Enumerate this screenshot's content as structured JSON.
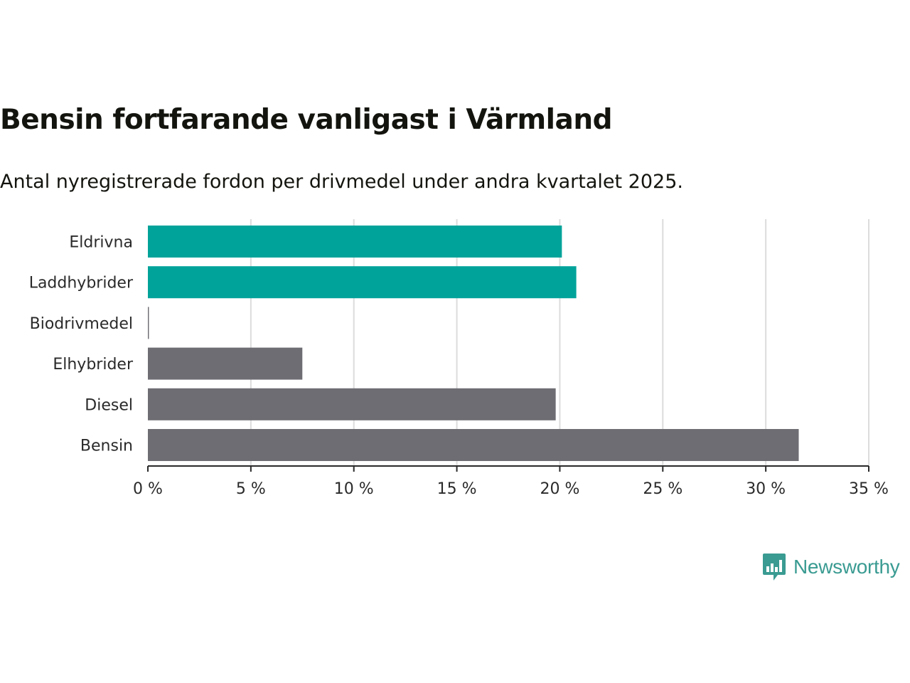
{
  "header": {
    "title": "Bensin fortfarande vanligast i Värmland",
    "subtitle": "Antal nyregistrerade fordon per drivmedel under andra kvartalet 2025."
  },
  "chart_data": {
    "type": "bar",
    "orientation": "horizontal",
    "categories": [
      "Eldrivna",
      "Laddhybrider",
      "Biodrivmedel",
      "Elhybrider",
      "Diesel",
      "Bensin"
    ],
    "values": [
      20.1,
      20.8,
      0.05,
      7.5,
      19.8,
      31.6
    ],
    "colors": [
      "#00a39a",
      "#00a39a",
      "#6e6d73",
      "#6e6d73",
      "#6e6d73",
      "#6e6d73"
    ],
    "xlim": [
      0,
      35
    ],
    "xticks": [
      0,
      5,
      10,
      15,
      20,
      25,
      30,
      35
    ],
    "tick_format": "{} %",
    "grid": "vertical",
    "title": "Bensin fortfarande vanligast i Värmland",
    "xlabel": "",
    "ylabel": ""
  },
  "branding": {
    "logo_icon": "newsworthy-chart-icon",
    "logo_text": "Newsworthy",
    "accent_color": "#3a9b92"
  }
}
